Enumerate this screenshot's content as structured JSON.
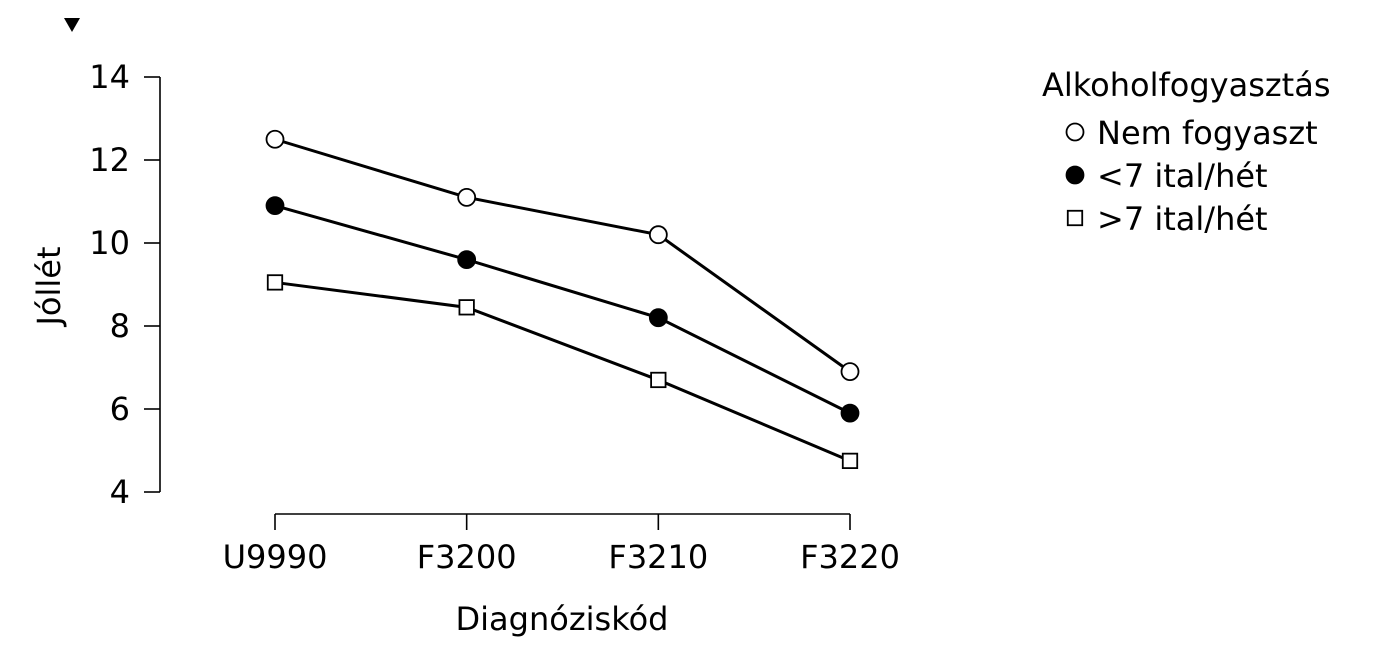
{
  "chart_data": {
    "type": "line",
    "categories": [
      "U9990",
      "F3200",
      "F3210",
      "F3220"
    ],
    "xlabel": "Diagnóziskód",
    "ylabel": "Jóllét",
    "ylim": [
      4,
      14
    ],
    "yticks": [
      4,
      6,
      8,
      10,
      12,
      14
    ],
    "grid": false,
    "legend": {
      "title": "Alkoholfogyasztás",
      "placement": "top-right"
    },
    "series": [
      {
        "name": "Nem fogyaszt",
        "marker": "open-circle",
        "values": [
          12.5,
          11.1,
          10.2,
          6.9
        ]
      },
      {
        "name": "<7 ital/hét",
        "marker": "filled-circle",
        "values": [
          10.9,
          9.6,
          8.2,
          5.9
        ]
      },
      {
        "name": ">7 ital/hét",
        "marker": "open-square",
        "values": [
          9.05,
          8.45,
          6.7,
          4.75
        ]
      }
    ]
  },
  "corner_marker": "down-triangle-icon"
}
